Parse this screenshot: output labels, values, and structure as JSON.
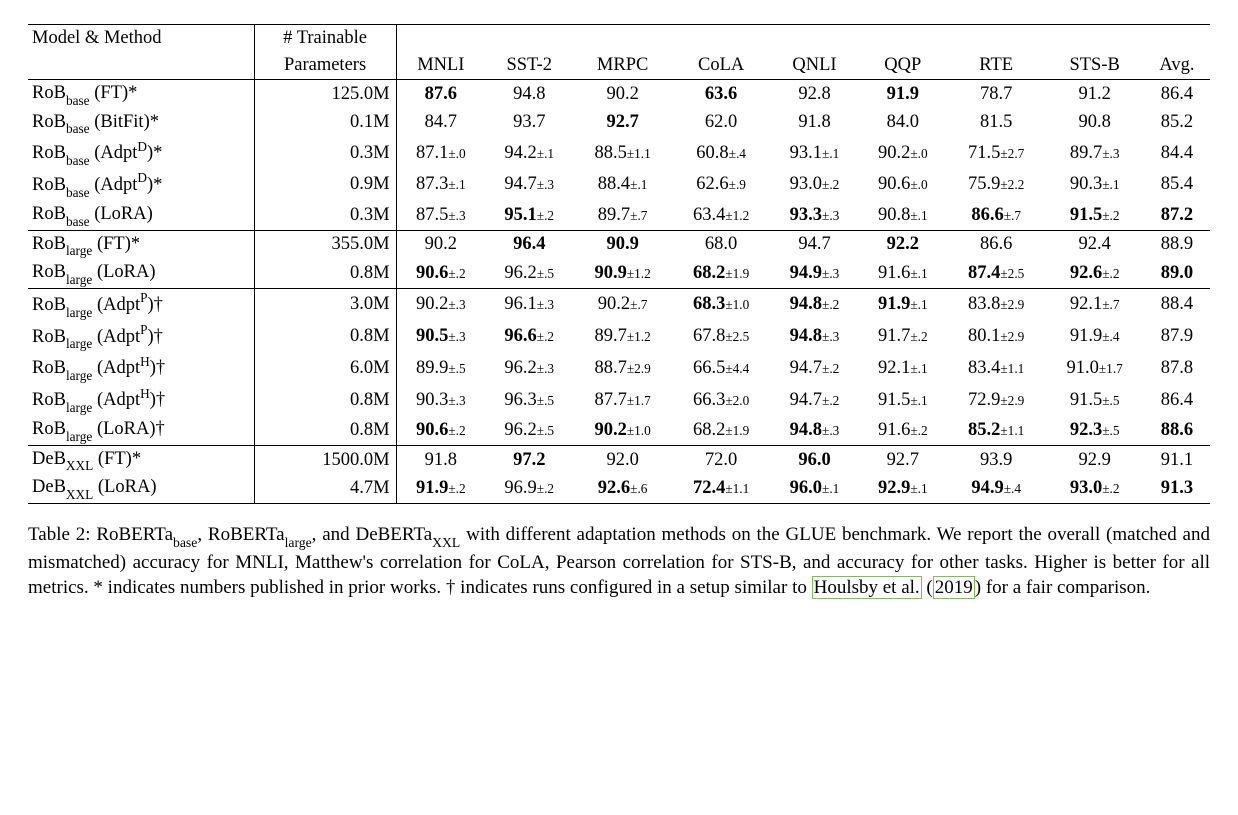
{
  "header": {
    "col_method_line1": "Model & Method",
    "col_params_line1": "# Trainable",
    "col_params_line2": "Parameters",
    "cols": [
      "MNLI",
      "SST-2",
      "MRPC",
      "CoLA",
      "QNLI",
      "QQP",
      "RTE",
      "STS-B",
      "Avg."
    ]
  },
  "groups": [
    {
      "rows": [
        {
          "model": "RoB",
          "sub": "base",
          "method": "(FT)*",
          "params": "125.0M",
          "cells": [
            {
              "v": "87.6",
              "b": true
            },
            {
              "v": "94.8"
            },
            {
              "v": "90.2"
            },
            {
              "v": "63.6",
              "b": true
            },
            {
              "v": "92.8"
            },
            {
              "v": "91.9",
              "b": true
            },
            {
              "v": "78.7"
            },
            {
              "v": "91.2"
            },
            {
              "v": "86.4"
            }
          ]
        },
        {
          "model": "RoB",
          "sub": "base",
          "method": "(BitFit)*",
          "params": "0.1M",
          "cells": [
            {
              "v": "84.7"
            },
            {
              "v": "93.7"
            },
            {
              "v": "92.7",
              "b": true
            },
            {
              "v": "62.0"
            },
            {
              "v": "91.8"
            },
            {
              "v": "84.0"
            },
            {
              "v": "81.5"
            },
            {
              "v": "90.8"
            },
            {
              "v": "85.2"
            }
          ]
        },
        {
          "model": "RoB",
          "sub": "base",
          "sup": "D",
          "method": "(Adpt",
          "method_suffix": ")*",
          "params": "0.3M",
          "cells": [
            {
              "v": "87.1",
              "e": ".0"
            },
            {
              "v": "94.2",
              "e": ".1"
            },
            {
              "v": "88.5",
              "e": "1.1"
            },
            {
              "v": "60.8",
              "e": ".4"
            },
            {
              "v": "93.1",
              "e": ".1"
            },
            {
              "v": "90.2",
              "e": ".0"
            },
            {
              "v": "71.5",
              "e": "2.7"
            },
            {
              "v": "89.7",
              "e": ".3"
            },
            {
              "v": "84.4"
            }
          ]
        },
        {
          "model": "RoB",
          "sub": "base",
          "sup": "D",
          "method": "(Adpt",
          "method_suffix": ")*",
          "params": "0.9M",
          "cells": [
            {
              "v": "87.3",
              "e": ".1"
            },
            {
              "v": "94.7",
              "e": ".3"
            },
            {
              "v": "88.4",
              "e": ".1"
            },
            {
              "v": "62.6",
              "e": ".9"
            },
            {
              "v": "93.0",
              "e": ".2"
            },
            {
              "v": "90.6",
              "e": ".0"
            },
            {
              "v": "75.9",
              "e": "2.2"
            },
            {
              "v": "90.3",
              "e": ".1"
            },
            {
              "v": "85.4"
            }
          ]
        },
        {
          "model": "RoB",
          "sub": "base",
          "method": "(LoRA)",
          "params": "0.3M",
          "cells": [
            {
              "v": "87.5",
              "e": ".3"
            },
            {
              "v": "95.1",
              "e": ".2",
              "b": true
            },
            {
              "v": "89.7",
              "e": ".7"
            },
            {
              "v": "63.4",
              "e": "1.2"
            },
            {
              "v": "93.3",
              "e": ".3",
              "b": true
            },
            {
              "v": "90.8",
              "e": ".1"
            },
            {
              "v": "86.6",
              "e": ".7",
              "b": true
            },
            {
              "v": "91.5",
              "e": ".2",
              "b": true
            },
            {
              "v": "87.2",
              "b": true
            }
          ]
        }
      ]
    },
    {
      "rows": [
        {
          "model": "RoB",
          "sub": "large",
          "method": "(FT)*",
          "params": "355.0M",
          "cells": [
            {
              "v": "90.2"
            },
            {
              "v": "96.4",
              "b": true
            },
            {
              "v": "90.9",
              "b": true
            },
            {
              "v": "68.0"
            },
            {
              "v": "94.7"
            },
            {
              "v": "92.2",
              "b": true
            },
            {
              "v": "86.6"
            },
            {
              "v": "92.4"
            },
            {
              "v": "88.9"
            }
          ]
        },
        {
          "model": "RoB",
          "sub": "large",
          "method": "(LoRA)",
          "params": "0.8M",
          "cells": [
            {
              "v": "90.6",
              "e": ".2",
              "b": true
            },
            {
              "v": "96.2",
              "e": ".5"
            },
            {
              "v": "90.9",
              "e": "1.2",
              "b": true
            },
            {
              "v": "68.2",
              "e": "1.9",
              "b": true
            },
            {
              "v": "94.9",
              "e": ".3",
              "b": true
            },
            {
              "v": "91.6",
              "e": ".1"
            },
            {
              "v": "87.4",
              "e": "2.5",
              "b": true
            },
            {
              "v": "92.6",
              "e": ".2",
              "b": true
            },
            {
              "v": "89.0",
              "b": true
            }
          ]
        }
      ]
    },
    {
      "rows": [
        {
          "model": "RoB",
          "sub": "large",
          "sup": "P",
          "method": "(Adpt",
          "method_suffix": ")†",
          "params": "3.0M",
          "cells": [
            {
              "v": "90.2",
              "e": ".3"
            },
            {
              "v": "96.1",
              "e": ".3"
            },
            {
              "v": "90.2",
              "e": ".7"
            },
            {
              "v": "68.3",
              "e": "1.0",
              "b": true
            },
            {
              "v": "94.8",
              "e": ".2",
              "b": true
            },
            {
              "v": "91.9",
              "e": ".1",
              "b": true
            },
            {
              "v": "83.8",
              "e": "2.9"
            },
            {
              "v": "92.1",
              "e": ".7"
            },
            {
              "v": "88.4"
            }
          ]
        },
        {
          "model": "RoB",
          "sub": "large",
          "sup": "P",
          "method": "(Adpt",
          "method_suffix": ")†",
          "params": "0.8M",
          "cells": [
            {
              "v": "90.5",
              "e": ".3",
              "b": true
            },
            {
              "v": "96.6",
              "e": ".2",
              "b": true
            },
            {
              "v": "89.7",
              "e": "1.2"
            },
            {
              "v": "67.8",
              "e": "2.5"
            },
            {
              "v": "94.8",
              "e": ".3",
              "b": true
            },
            {
              "v": "91.7",
              "e": ".2"
            },
            {
              "v": "80.1",
              "e": "2.9"
            },
            {
              "v": "91.9",
              "e": ".4"
            },
            {
              "v": "87.9"
            }
          ]
        },
        {
          "model": "RoB",
          "sub": "large",
          "sup": "H",
          "method": "(Adpt",
          "method_suffix": ")†",
          "params": "6.0M",
          "cells": [
            {
              "v": "89.9",
              "e": ".5"
            },
            {
              "v": "96.2",
              "e": ".3"
            },
            {
              "v": "88.7",
              "e": "2.9"
            },
            {
              "v": "66.5",
              "e": "4.4"
            },
            {
              "v": "94.7",
              "e": ".2"
            },
            {
              "v": "92.1",
              "e": ".1"
            },
            {
              "v": "83.4",
              "e": "1.1"
            },
            {
              "v": "91.0",
              "e": "1.7"
            },
            {
              "v": "87.8"
            }
          ]
        },
        {
          "model": "RoB",
          "sub": "large",
          "sup": "H",
          "method": "(Adpt",
          "method_suffix": ")†",
          "params": "0.8M",
          "cells": [
            {
              "v": "90.3",
              "e": ".3"
            },
            {
              "v": "96.3",
              "e": ".5"
            },
            {
              "v": "87.7",
              "e": "1.7"
            },
            {
              "v": "66.3",
              "e": "2.0"
            },
            {
              "v": "94.7",
              "e": ".2"
            },
            {
              "v": "91.5",
              "e": ".1"
            },
            {
              "v": "72.9",
              "e": "2.9"
            },
            {
              "v": "91.5",
              "e": ".5"
            },
            {
              "v": "86.4"
            }
          ]
        },
        {
          "model": "RoB",
          "sub": "large",
          "method": "(LoRA)†",
          "params": "0.8M",
          "cells": [
            {
              "v": "90.6",
              "e": ".2",
              "b": true
            },
            {
              "v": "96.2",
              "e": ".5"
            },
            {
              "v": "90.2",
              "e": "1.0",
              "b": true
            },
            {
              "v": "68.2",
              "e": "1.9"
            },
            {
              "v": "94.8",
              "e": ".3",
              "b": true
            },
            {
              "v": "91.6",
              "e": ".2"
            },
            {
              "v": "85.2",
              "e": "1.1",
              "b": true
            },
            {
              "v": "92.3",
              "e": ".5",
              "b": true
            },
            {
              "v": "88.6",
              "b": true
            }
          ]
        }
      ]
    },
    {
      "rows": [
        {
          "model": "DeB",
          "sub": "XXL",
          "method": "(FT)*",
          "params": "1500.0M",
          "cells": [
            {
              "v": "91.8"
            },
            {
              "v": "97.2",
              "b": true
            },
            {
              "v": "92.0"
            },
            {
              "v": "72.0"
            },
            {
              "v": "96.0",
              "b": true
            },
            {
              "v": "92.7"
            },
            {
              "v": "93.9"
            },
            {
              "v": "92.9"
            },
            {
              "v": "91.1"
            }
          ]
        },
        {
          "model": "DeB",
          "sub": "XXL",
          "method": "(LoRA)",
          "params": "4.7M",
          "cells": [
            {
              "v": "91.9",
              "e": ".2",
              "b": true
            },
            {
              "v": "96.9",
              "e": ".2"
            },
            {
              "v": "92.6",
              "e": ".6",
              "b": true
            },
            {
              "v": "72.4",
              "e": "1.1",
              "b": true
            },
            {
              "v": "96.0",
              "e": ".1",
              "b": true
            },
            {
              "v": "92.9",
              "e": ".1",
              "b": true
            },
            {
              "v": "94.9",
              "e": ".4",
              "b": true
            },
            {
              "v": "93.0",
              "e": ".2",
              "b": true
            },
            {
              "v": "91.3",
              "b": true
            }
          ]
        }
      ]
    }
  ],
  "caption": {
    "label": "Table 2:",
    "text_a": " RoBERTa",
    "sub_a": "base",
    "text_b": ", RoBERTa",
    "sub_b": "large",
    "text_c": ", and DeBERTa",
    "sub_c": "XXL",
    "text_d": " with different adaptation methods on the GLUE benchmark. We report the overall (matched and mismatched) accuracy for MNLI, Matthew's correlation for CoLA, Pearson correlation for STS-B, and accuracy for other tasks. Higher is better for all metrics. * indicates numbers published in prior works. † indicates runs configured in a setup similar to ",
    "cite_author": "Houlsby et al.",
    "cite_year": "2019",
    "text_e": " for a fair comparison."
  },
  "style": {
    "font": "Times New Roman",
    "cite_border_color": "#7fbf4f",
    "rule_color": "#000000",
    "background": "#ffffff"
  }
}
